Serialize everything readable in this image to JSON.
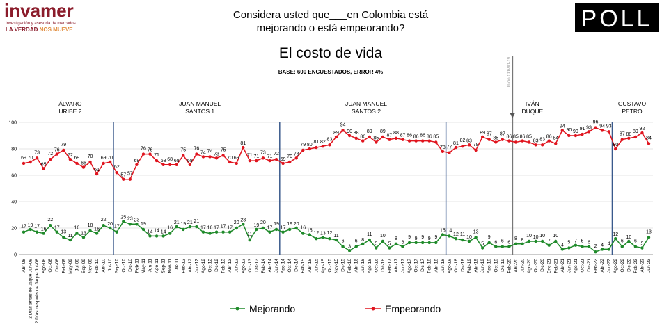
{
  "header": {
    "brand": "invamer",
    "brand_sub": "Investigación y asesoría de mercados",
    "slogan_a": "LA VERDAD",
    "slogan_b": "NOS MUEVE",
    "question_1": "Considera usted que___en Colombia está",
    "question_2": "mejorando o está empeorando?",
    "poll_logo": "POLL"
  },
  "chart_data": {
    "type": "line",
    "title": "El costo de vida",
    "subtitle": "BASE: 600 ENCUESTADOS, ERROR 4%",
    "categories": [
      "Abr-08",
      "2 Días antes de Jaque Jun-08",
      "2 Días después de Jaque Jul-08",
      "Ago-08",
      "Oct-08",
      "Dic-08",
      "Feb-09",
      "May-09",
      "Jul-09",
      "Sep-09",
      "Nov-09",
      "Feb-10",
      "Abr-10",
      "Jul-10",
      "Sep-10",
      "Oct-10",
      "Dic-10",
      "Feb-11",
      "May-11",
      "Jun-11",
      "Ago-11",
      "Sep-11",
      "Nov-11",
      "Dic-11",
      "Feb-12",
      "Abr-12",
      "Jun-12",
      "Ago-12",
      "Oct-12",
      "Dic-12",
      "Feb-13",
      "Abr-13",
      "Jun-13",
      "Ago-13",
      "Oct-13",
      "Dic-13",
      "Feb-14",
      "Abr-14",
      "Jun-14",
      "Ago-14",
      "Oct-14",
      "Dic-14",
      "Feb-15",
      "Abr-15",
      "Jun-15",
      "Ago-15",
      "Oct-15",
      "Nov-15",
      "Dic-15",
      "Feb-16",
      "Abr-16",
      "Jun-16",
      "Ago-16",
      "Oct-16",
      "Dic-16",
      "Feb-17",
      "Abr-17",
      "Jun-17",
      "Ago-17",
      "Oct-17",
      "Dic-17",
      "Feb-18",
      "Abr-18",
      "Jun-18",
      "Ago-18",
      "Oct-18",
      "Dic-18",
      "Feb-19",
      "Abr-19",
      "Jun-19",
      "Ago-19",
      "Oct-19",
      "Dic-19",
      "Feb-20",
      "Abr-20",
      "Jun-20",
      "Ago-20",
      "Oct-20",
      "Dic-20",
      "Ene-21",
      "Feb-21",
      "Abr-21",
      "Jun-21",
      "Ago-21",
      "Oct-21",
      "Dic-21",
      "Feb-22",
      "Abr-22",
      "Jun-22",
      "Ago-22",
      "Oct-22",
      "Dic-22",
      "Feb-23",
      "Abr-23",
      "Jun-23"
    ],
    "series": [
      {
        "name": "Mejorando",
        "color": "#1f8a2a",
        "values": [
          17,
          19,
          17,
          16,
          22,
          17,
          13,
          11,
          16,
          13,
          18,
          16,
          22,
          20,
          17,
          25,
          23,
          23,
          19,
          14,
          14,
          14,
          16,
          21,
          19,
          21,
          21,
          17,
          16,
          17,
          17,
          17,
          20,
          23,
          11,
          19,
          20,
          17,
          19,
          17,
          19,
          20,
          16,
          15,
          12,
          13,
          12,
          11,
          6,
          3,
          6,
          8,
          11,
          5,
          10,
          5,
          8,
          6,
          9,
          9,
          9,
          9,
          9,
          15,
          14,
          12,
          11,
          10,
          13,
          5,
          9,
          6,
          6,
          6,
          8,
          8,
          10,
          10,
          10,
          7,
          10,
          4,
          5,
          7,
          6,
          6,
          2,
          4,
          4,
          12,
          6,
          10,
          6,
          5,
          13
        ]
      },
      {
        "name": "Empeorando",
        "color": "#e0141e",
        "values": [
          69,
          70,
          73,
          65,
          72,
          76,
          79,
          72,
          69,
          66,
          70,
          61,
          69,
          70,
          62,
          57,
          57,
          68,
          76,
          76,
          71,
          68,
          68,
          68,
          75,
          68,
          76,
          74,
          74,
          73,
          75,
          70,
          69,
          81,
          71,
          71,
          73,
          71,
          72,
          69,
          70,
          73,
          79,
          80,
          81,
          82,
          83,
          89,
          94,
          90,
          88,
          86,
          89,
          85,
          89,
          87,
          88,
          87,
          86,
          86,
          86,
          86,
          85,
          78,
          77,
          81,
          82,
          83,
          79,
          89,
          87,
          85,
          87,
          86,
          85,
          86,
          85,
          83,
          83,
          86,
          84,
          94,
          90,
          90,
          91,
          93,
          96,
          94,
          93,
          80,
          87,
          88,
          89,
          92,
          84
        ]
      }
    ],
    "ylim": [
      0,
      100
    ],
    "yticks": [
      0,
      20,
      40,
      60,
      80,
      100
    ],
    "periods": [
      {
        "label": [
          "ÁLVARO",
          "URIBE 2"
        ],
        "start": "Abr-08"
      },
      {
        "label": [
          "JUAN MANUEL",
          "SANTOS 1"
        ],
        "start": "Sep-10"
      },
      {
        "label": [
          "JUAN MANUEL",
          "SANTOS 2"
        ],
        "start": "Ago-14"
      },
      {
        "label": [
          "IVÁN",
          "DUQUE"
        ],
        "start": "Ago-18"
      },
      {
        "label": [
          "GUSTAVO",
          "PETRO"
        ],
        "start": "Ago-22"
      }
    ],
    "annotation": {
      "label": "Inicio COVID-19",
      "at": "Abr-20"
    }
  }
}
